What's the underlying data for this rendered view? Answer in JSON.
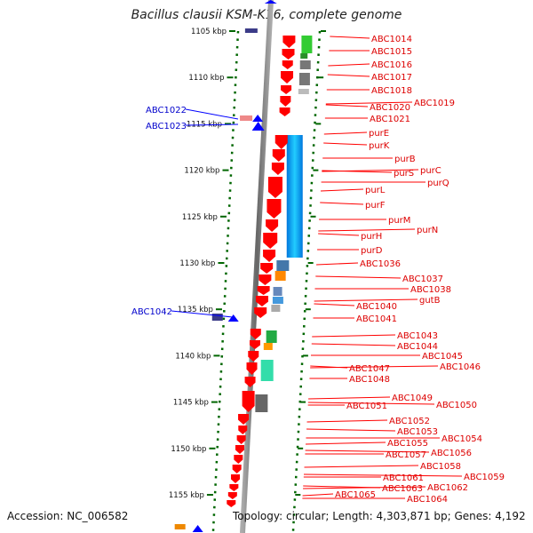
{
  "title": "Bacillus clausii KSM-K16, complete genome",
  "accession": "Accession: NC_006582",
  "topology": "Topology: circular; Length: 4,303,871 bp; Genes: 4,192",
  "ticks": [
    "1105 kbp",
    "1110 kbp",
    "1115 kbp",
    "1120 kbp",
    "1125 kbp",
    "1130 kbp",
    "1135 kbp",
    "1140 kbp",
    "1145 kbp",
    "1150 kbp",
    "1155 kbp"
  ],
  "left_genes": [
    "ABC1022",
    "ABC1023",
    "ABC1042"
  ],
  "right_genes": [
    "ABC1014",
    "ABC1015",
    "ABC1016",
    "ABC1017",
    "ABC1018",
    "ABC1019",
    "ABC1020",
    "ABC1021",
    "purE",
    "purK",
    "purB",
    "purC",
    "purS",
    "purQ",
    "purL",
    "purF",
    "purM",
    "purN",
    "purH",
    "purD",
    "ABC1036",
    "ABC1037",
    "ABC1038",
    "gutB",
    "ABC1040",
    "ABC1041",
    "ABC1043",
    "ABC1044",
    "ABC1045",
    "ABC1046",
    "ABC1047",
    "ABC1048",
    "ABC1049",
    "ABC1050",
    "ABC1051",
    "ABC1052",
    "ABC1053",
    "ABC1054",
    "ABC1055",
    "ABC1056",
    "ABC1057",
    "ABC1058",
    "ABC1059",
    "ABC1061",
    "ABC1062",
    "ABC1063",
    "ABC1064",
    "ABC1065"
  ],
  "colors": {
    "forward_gene": "#ff0000",
    "reverse_gene": "#0000ff",
    "backbone": "#888888",
    "tick": "#006600",
    "cog_blue": "#00aaee",
    "cog_green": "#33cc33"
  }
}
